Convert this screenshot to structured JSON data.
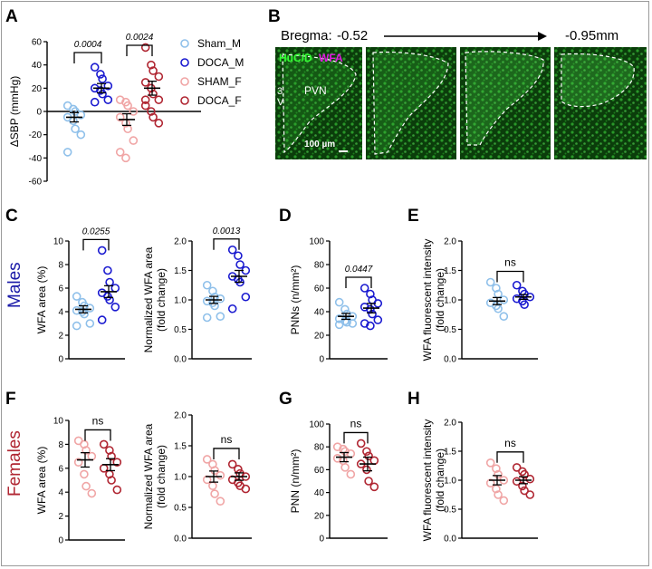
{
  "colors": {
    "sham_m": "#8fc0ea",
    "doca_m": "#1a1ad0",
    "sham_f": "#f0a5a5",
    "doca_f": "#b02632",
    "males_label": "#1a1aa8",
    "females_label": "#b02632",
    "micro_green": "#1f8a1f",
    "wfa_label": "#e01ae0",
    "huc_label": "#34ff34"
  },
  "labels": {
    "males": "Males",
    "females": "Females",
    "ns": "ns"
  },
  "micrograph": {
    "panel_letter": "B",
    "bregma_label": "Bregma:",
    "bregma_start": "-0.52",
    "bregma_end": "-0.95mm",
    "marker_huc": "HuC/D",
    "marker_wfa": "WFA",
    "ventricle_label_top": "3",
    "ventricle_label_bottom": "V",
    "pvn_label": "PVN",
    "scale_bar_label": "100 µm"
  },
  "chart_data": [
    {
      "panel": "A",
      "type": "scatter",
      "ylabel": "ΔSBP (mmHg)",
      "ylim": [
        -60,
        60
      ],
      "yticks": [
        "60",
        "40",
        "20",
        "0",
        "-20",
        "-40",
        "-60"
      ],
      "legend": [
        {
          "name": "Sham_M",
          "color_key": "sham_m"
        },
        {
          "name": "DOCA_M",
          "color_key": "doca_m"
        },
        {
          "name": "SHAM_F",
          "color_key": "sham_f"
        },
        {
          "name": "DOCA_F",
          "color_key": "doca_f"
        }
      ],
      "series": [
        {
          "name": "Sham_M",
          "color_key": "sham_m",
          "mean": -5,
          "sem": 4,
          "values": [
            5,
            2,
            0,
            -3,
            -5,
            -8,
            -15,
            -20,
            -35
          ]
        },
        {
          "name": "DOCA_M",
          "color_key": "doca_m",
          "mean": 20,
          "sem": 4,
          "values": [
            38,
            32,
            28,
            22,
            20,
            18,
            15,
            10,
            8
          ]
        },
        {
          "name": "SHAM_F",
          "color_key": "sham_f",
          "mean": -7,
          "sem": 5,
          "values": [
            10,
            8,
            5,
            0,
            -5,
            -10,
            -15,
            -25,
            -35,
            -40
          ]
        },
        {
          "name": "DOCA_F",
          "color_key": "doca_f",
          "mean": 20,
          "sem": 6,
          "values": [
            55,
            40,
            35,
            30,
            25,
            20,
            15,
            10,
            5,
            0,
            -5,
            -10,
            10
          ]
        }
      ],
      "comparisons": [
        {
          "pair": [
            0,
            1
          ],
          "label": "0.0004"
        },
        {
          "pair": [
            2,
            3
          ],
          "label": "0.0024"
        }
      ]
    },
    {
      "panel": "C",
      "type": "scatter",
      "ylabel": "WFA area (%)",
      "ylim": [
        0,
        10
      ],
      "yticks": [
        "10",
        "8",
        "6",
        "4",
        "2",
        "0"
      ],
      "series": [
        {
          "name": "Sham_M",
          "color_key": "sham_m",
          "mean": 4.2,
          "sem": 0.3,
          "values": [
            5.3,
            4.8,
            4.5,
            4.3,
            4.1,
            4.0,
            3.8,
            3.0,
            2.8
          ]
        },
        {
          "name": "DOCA_M",
          "color_key": "doca_m",
          "mean": 5.7,
          "sem": 0.5,
          "values": [
            9.2,
            7.5,
            6.5,
            6.0,
            5.6,
            5.3,
            5.0,
            4.4,
            3.3
          ]
        }
      ],
      "comparisons": [
        {
          "pair": [
            0,
            1
          ],
          "label": "0.0255"
        }
      ]
    },
    {
      "panel": "C2",
      "type": "scatter",
      "ylabel": "Normalized WFA area (fold change)",
      "ylim": [
        0,
        2
      ],
      "yticks": [
        "2.0",
        "1.5",
        "1.0",
        "0.5",
        "0.0"
      ],
      "series": [
        {
          "name": "Sham_M",
          "color_key": "sham_m",
          "mean": 1.0,
          "sem": 0.06,
          "values": [
            1.25,
            1.15,
            1.05,
            1.02,
            0.98,
            0.95,
            0.9,
            0.72,
            0.7
          ]
        },
        {
          "name": "DOCA_M",
          "color_key": "doca_m",
          "mean": 1.4,
          "sem": 0.1,
          "values": [
            1.85,
            1.75,
            1.6,
            1.5,
            1.4,
            1.35,
            1.3,
            1.05,
            0.85
          ]
        }
      ],
      "comparisons": [
        {
          "pair": [
            0,
            1
          ],
          "label": "0.0013"
        }
      ]
    },
    {
      "panel": "D",
      "type": "scatter",
      "ylabel": "PNNs (n/mm²)",
      "ylim": [
        0,
        100
      ],
      "yticks": [
        "100",
        "80",
        "60",
        "40",
        "20",
        "0"
      ],
      "series": [
        {
          "name": "Sham_M",
          "color_key": "sham_m",
          "mean": 36,
          "sem": 2.5,
          "values": [
            48,
            42,
            38,
            36,
            34,
            32,
            31,
            30,
            29
          ]
        },
        {
          "name": "DOCA_M",
          "color_key": "doca_m",
          "mean": 43,
          "sem": 4,
          "values": [
            60,
            55,
            50,
            47,
            44,
            42,
            38,
            33,
            30,
            28
          ]
        }
      ],
      "comparisons": [
        {
          "pair": [
            0,
            1
          ],
          "label": "0.0447"
        }
      ]
    },
    {
      "panel": "E",
      "type": "scatter",
      "ylabel": "WFA fluorescent intensity (fold change)",
      "ylim": [
        0,
        2
      ],
      "yticks": [
        "2.0",
        "1.5",
        "1.0",
        "0.5",
        "0.0"
      ],
      "series": [
        {
          "name": "Sham_M",
          "color_key": "sham_m",
          "mean": 0.98,
          "sem": 0.06,
          "values": [
            1.3,
            1.2,
            1.1,
            1.0,
            0.95,
            0.9,
            0.85,
            0.72
          ]
        },
        {
          "name": "DOCA_M",
          "color_key": "doca_m",
          "mean": 1.05,
          "sem": 0.04,
          "values": [
            1.25,
            1.15,
            1.1,
            1.05,
            1.02,
            0.98,
            0.92
          ]
        }
      ],
      "comparisons": [
        {
          "pair": [
            0,
            1
          ],
          "label": "ns"
        }
      ]
    },
    {
      "panel": "F",
      "type": "scatter",
      "ylabel": "WFA area (%)",
      "ylim": [
        0,
        10
      ],
      "yticks": [
        "10",
        "8",
        "6",
        "4",
        "2",
        "0"
      ],
      "series": [
        {
          "name": "SHAM_F",
          "color_key": "sham_f",
          "mean": 6.7,
          "sem": 0.6,
          "values": [
            8.3,
            8.0,
            7.5,
            7.0,
            6.5,
            5.5,
            4.5,
            3.9
          ]
        },
        {
          "name": "DOCA_F",
          "color_key": "doca_f",
          "mean": 6.3,
          "sem": 0.5,
          "values": [
            8.0,
            7.5,
            7.0,
            6.5,
            6.0,
            5.5,
            5.0,
            4.2
          ]
        }
      ],
      "comparisons": [
        {
          "pair": [
            0,
            1
          ],
          "label": "ns"
        }
      ]
    },
    {
      "panel": "F2",
      "type": "scatter",
      "ylabel": "Normalized WFA area (fold change)",
      "ylim": [
        0,
        2
      ],
      "yticks": [
        "2.0",
        "1.5",
        "1.0",
        "0.5",
        "0.0"
      ],
      "series": [
        {
          "name": "SHAM_F",
          "color_key": "sham_f",
          "mean": 1.0,
          "sem": 0.09,
          "values": [
            1.28,
            1.2,
            1.1,
            1.02,
            0.95,
            0.85,
            0.72,
            0.6
          ]
        },
        {
          "name": "DOCA_F",
          "color_key": "doca_f",
          "mean": 1.0,
          "sem": 0.06,
          "values": [
            1.2,
            1.12,
            1.05,
            1.0,
            0.95,
            0.9,
            0.85,
            0.8
          ]
        }
      ],
      "comparisons": [
        {
          "pair": [
            0,
            1
          ],
          "label": "ns"
        }
      ]
    },
    {
      "panel": "G",
      "type": "scatter",
      "ylabel": "PNN (n/mm²)",
      "ylim": [
        0,
        100
      ],
      "yticks": [
        "100",
        "80",
        "60",
        "40",
        "20",
        "0"
      ],
      "series": [
        {
          "name": "SHAM_F",
          "color_key": "sham_f",
          "mean": 71,
          "sem": 4,
          "values": [
            80,
            78,
            76,
            74,
            70,
            68,
            62,
            56
          ]
        },
        {
          "name": "DOCA_F",
          "color_key": "doca_f",
          "mean": 65,
          "sem": 6,
          "values": [
            83,
            76,
            72,
            68,
            65,
            60,
            50,
            45
          ]
        }
      ],
      "comparisons": [
        {
          "pair": [
            0,
            1
          ],
          "label": "ns"
        }
      ]
    },
    {
      "panel": "H",
      "type": "scatter",
      "ylabel": "WFA fluorescent intensity (fold change)",
      "ylim": [
        0,
        2
      ],
      "yticks": [
        "2.0",
        "1.5",
        "1.0",
        "0.5",
        "0.0"
      ],
      "series": [
        {
          "name": "SHAM_F",
          "color_key": "sham_f",
          "mean": 1.0,
          "sem": 0.08,
          "values": [
            1.3,
            1.2,
            1.1,
            1.0,
            0.95,
            0.85,
            0.75,
            0.65
          ]
        },
        {
          "name": "DOCA_F",
          "color_key": "doca_f",
          "mean": 1.0,
          "sem": 0.06,
          "values": [
            1.22,
            1.15,
            1.1,
            1.02,
            0.98,
            0.9,
            0.82,
            0.75
          ]
        }
      ],
      "comparisons": [
        {
          "pair": [
            0,
            1
          ],
          "label": "ns"
        }
      ]
    }
  ]
}
